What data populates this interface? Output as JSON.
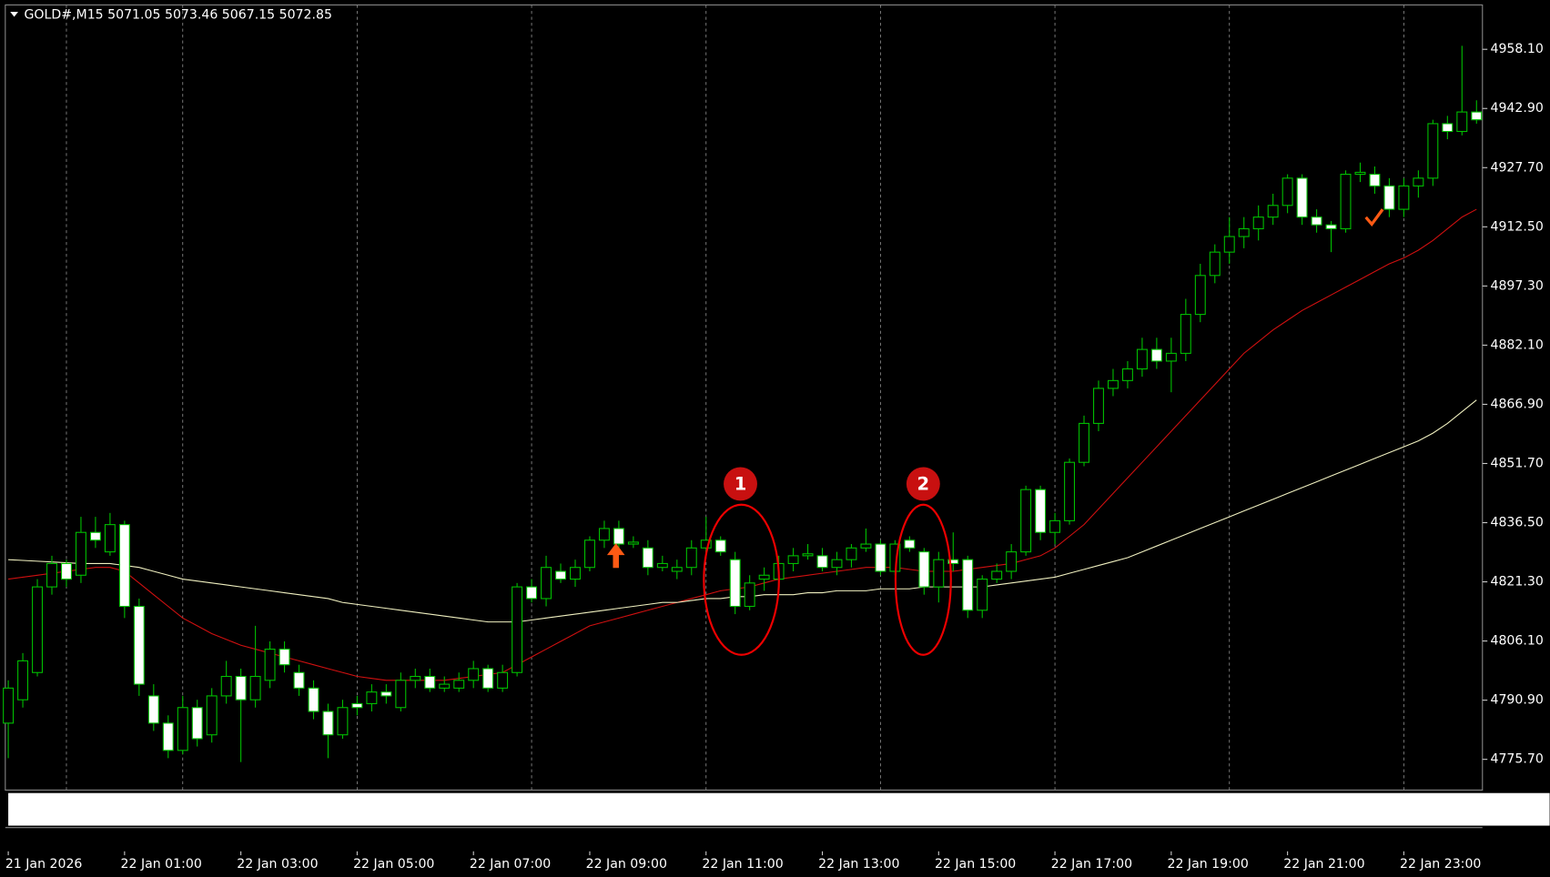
{
  "chart_data": {
    "type": "candlestick",
    "title": "GOLD#,M15  5071.05 5073.46 5067.15 5072.85",
    "categories": [
      "21 Jan 2026",
      null,
      null,
      null,
      null,
      null,
      null,
      null,
      "22 Jan 01:00",
      null,
      null,
      null,
      null,
      null,
      null,
      null,
      "22 Jan 03:00",
      null,
      null,
      null,
      null,
      null,
      null,
      null,
      "22 Jan 05:00",
      null,
      null,
      null,
      null,
      null,
      null,
      null,
      "22 Jan 07:00",
      null,
      null,
      null,
      null,
      null,
      null,
      null,
      "22 Jan 09:00",
      null,
      null,
      null,
      null,
      null,
      null,
      null,
      "22 Jan 11:00",
      null,
      null,
      null,
      null,
      null,
      null,
      null,
      "22 Jan 13:00",
      null,
      null,
      null,
      null,
      null,
      null,
      null,
      "22 Jan 15:00",
      null,
      null,
      null,
      null,
      null,
      null,
      null,
      "22 Jan 17:00",
      null,
      null,
      null,
      null,
      null,
      null,
      null,
      "22 Jan 19:00",
      null,
      null,
      null,
      null,
      null,
      null,
      null,
      "22 Jan 21:00",
      null,
      null,
      null,
      null,
      null,
      null,
      null,
      "22 Jan 23:00",
      null,
      null,
      null,
      null,
      null
    ],
    "open": [
      4785,
      4791,
      4798,
      4820,
      4826,
      4823,
      4834,
      4829,
      4836,
      4815,
      4792,
      4785,
      4778,
      4789,
      4782,
      4792,
      4797,
      4791,
      4796,
      4804,
      4798,
      4794,
      4788,
      4782,
      4790,
      4790,
      4793,
      4789,
      4796,
      4797,
      4794,
      4794,
      4796,
      4799,
      4794,
      4798,
      4820,
      4817,
      4824,
      4822,
      4825,
      4832,
      4835,
      4831,
      4830,
      4825,
      4824,
      4825,
      4830,
      4832,
      4827,
      4815,
      4822,
      4822,
      4826,
      4828,
      4828,
      4825,
      4827,
      4830,
      4831,
      4824,
      4832,
      4829,
      4820,
      4827,
      4827,
      4814,
      4822,
      4824,
      4829,
      4845,
      4834,
      4837,
      4852,
      4862,
      4871,
      4873,
      4876,
      4881,
      4878,
      4880,
      4890,
      4900,
      4906,
      4910,
      4912,
      4915,
      4918,
      4925,
      4915,
      4913,
      4912,
      4926,
      4926,
      4923,
      4917,
      4923,
      4925,
      4939,
      4937,
      4942
    ],
    "high": [
      4796,
      4803,
      4822,
      4828,
      4827,
      4838,
      4838,
      4839,
      4837,
      4817,
      4795,
      4787,
      4792,
      4791,
      4794,
      4801,
      4799,
      4810,
      4806,
      4806,
      4800,
      4796,
      4790,
      4791,
      4792,
      4795,
      4795,
      4798,
      4799,
      4799,
      4797,
      4798,
      4801,
      4800,
      4800,
      4821,
      4822,
      4828,
      4826,
      4827,
      4833,
      4837,
      4837,
      4833,
      4832,
      4828,
      4827,
      4832,
      4838,
      4833,
      4829,
      4823,
      4825,
      4828,
      4830,
      4831,
      4830,
      4829,
      4831,
      4835,
      4832,
      4832,
      4833,
      4830,
      4829,
      4834,
      4828,
      4823,
      4826,
      4831,
      4846,
      4846,
      4839,
      4853,
      4864,
      4873,
      4876,
      4878,
      4884,
      4884,
      4884,
      4894,
      4903,
      4908,
      4915,
      4915,
      4918,
      4921,
      4926,
      4926,
      4917,
      4914,
      4927,
      4929,
      4928,
      4925,
      4925,
      4927,
      4940,
      4941,
      4959,
      4945
    ],
    "low": [
      4776,
      4789,
      4797,
      4818,
      4820,
      4821,
      4830,
      4828,
      4812,
      4792,
      4783,
      4776,
      4777,
      4779,
      4780,
      4790,
      4775,
      4789,
      4794,
      4798,
      4792,
      4786,
      4776,
      4781,
      4787,
      4788,
      4790,
      4788,
      4794,
      4793,
      4793,
      4793,
      4794,
      4793,
      4793,
      4797,
      4816,
      4815,
      4821,
      4820,
      4824,
      4830,
      4829,
      4830,
      4823,
      4824,
      4822,
      4823,
      4828,
      4828,
      4813,
      4814,
      4819,
      4821,
      4824,
      4827,
      4824,
      4823,
      4825,
      4829,
      4823,
      4823,
      4829,
      4818,
      4816,
      4824,
      4812,
      4812,
      4821,
      4822,
      4828,
      4832,
      4831,
      4836,
      4851,
      4860,
      4869,
      4871,
      4874,
      4876,
      4870,
      4878,
      4888,
      4898,
      4903,
      4907,
      4909,
      4913,
      4916,
      4913,
      4911,
      4906,
      4911,
      4924,
      4921,
      4915,
      4915,
      4920,
      4923,
      4935,
      4936,
      4939
    ],
    "close": [
      4794,
      4801,
      4820,
      4826,
      4822,
      4834,
      4832,
      4836,
      4815,
      4795,
      4785,
      4778,
      4789,
      4781,
      4792,
      4797,
      4791,
      4797,
      4804,
      4800,
      4794,
      4788,
      4782,
      4789,
      4789,
      4793,
      4792,
      4796,
      4797,
      4794,
      4795,
      4796,
      4799,
      4794,
      4798,
      4820,
      4817,
      4825,
      4822,
      4825,
      4832,
      4835,
      4831,
      4831.5,
      4825,
      4826,
      4825,
      4830,
      4832,
      4829,
      4815,
      4821,
      4823,
      4826,
      4828,
      4828.5,
      4825,
      4827,
      4830,
      4831,
      4824,
      4831,
      4830,
      4820,
      4827,
      4826,
      4814,
      4822,
      4824,
      4829,
      4845,
      4834,
      4837,
      4852,
      4862,
      4871,
      4873,
      4876,
      4881,
      4878,
      4880,
      4890,
      4900,
      4906,
      4910,
      4912,
      4915,
      4918,
      4925,
      4915,
      4913,
      4912,
      4926,
      4926.5,
      4923,
      4917,
      4923,
      4925,
      4939,
      4937,
      4942,
      4940
    ],
    "up_color": "#000000",
    "down_color": "#ffffff",
    "wick_color": "#00c000",
    "series": [
      {
        "color": "#d01010",
        "values": [
          4822,
          4822.5,
          4823,
          4823.5,
          4824,
          4824.5,
          4825,
          4825,
          4824,
          4821,
          4818,
          4815,
          4812,
          4810,
          4808,
          4806.5,
          4805,
          4804,
          4803,
          4802,
          4801,
          4800,
          4799,
          4798,
          4797,
          4796.5,
          4796,
          4796,
          4796,
          4796,
          4796,
          4796.5,
          4797,
          4797.5,
          4798,
          4800,
          4802,
          4804,
          4806,
          4808,
          4810,
          4811,
          4812,
          4813,
          4814,
          4815,
          4816,
          4817,
          4818,
          4819,
          4819.5,
          4820,
          4821,
          4822,
          4822.5,
          4823,
          4823.5,
          4824,
          4824.5,
          4825,
          4825,
          4825,
          4824.5,
          4824,
          4824,
          4824,
          4824.5,
          4825,
          4825.5,
          4826,
          4827,
          4828,
          4830,
          4833,
          4836,
          4840,
          4844,
          4848,
          4852,
          4856,
          4860,
          4864,
          4868,
          4872,
          4876,
          4880,
          4883,
          4886,
          4888.5,
          4891,
          4893,
          4895,
          4897,
          4899,
          4901,
          4903,
          4904.5,
          4906.5,
          4909,
          4912,
          4915,
          4917
        ]
      },
      {
        "color": "#f0f0c0",
        "values": [
          4827,
          4826.8,
          4826.6,
          4826.4,
          4826.2,
          4826,
          4826,
          4826,
          4825.5,
          4825,
          4824,
          4823,
          4822,
          4821.5,
          4821,
          4820.5,
          4820,
          4819.5,
          4819,
          4818.5,
          4818,
          4817.5,
          4817,
          4816,
          4815.5,
          4815,
          4814.5,
          4814,
          4813.5,
          4813,
          4812.5,
          4812,
          4811.5,
          4811,
          4811,
          4811,
          4811.5,
          4812,
          4812.5,
          4813,
          4813.5,
          4814,
          4814.5,
          4815,
          4815.5,
          4816,
          4816,
          4816.5,
          4817,
          4817,
          4817.5,
          4817.5,
          4818,
          4818,
          4818,
          4818.5,
          4818.5,
          4819,
          4819,
          4819,
          4819.5,
          4819.5,
          4819.5,
          4820,
          4820,
          4820,
          4820,
          4820,
          4820.5,
          4821,
          4821.5,
          4822,
          4822.5,
          4823.5,
          4824.5,
          4825.5,
          4826.5,
          4827.5,
          4829,
          4830.5,
          4832,
          4833.5,
          4835,
          4836.5,
          4838,
          4839.5,
          4841,
          4842.5,
          4844,
          4845.5,
          4847,
          4848.5,
          4850,
          4851.5,
          4853,
          4854.5,
          4856,
          4857.5,
          4859.5,
          4862,
          4865,
          4868
        ]
      }
    ],
    "ylim": [
      4767.8,
      4969.5
    ],
    "yticks": [
      {
        "value": 4775.7,
        "label": "4775.70"
      },
      {
        "value": 4790.9,
        "label": "4790.90"
      },
      {
        "value": 4806.1,
        "label": "4806.10"
      },
      {
        "value": 4821.3,
        "label": "4821.30"
      },
      {
        "value": 4836.5,
        "label": "4836.50"
      },
      {
        "value": 4851.7,
        "label": "4851.70"
      },
      {
        "value": 4866.9,
        "label": "4866.90"
      },
      {
        "value": 4882.1,
        "label": "4882.10"
      },
      {
        "value": 4897.3,
        "label": "4897.30"
      },
      {
        "value": 4912.5,
        "label": "4912.50"
      },
      {
        "value": 4927.7,
        "label": "4927.70"
      },
      {
        "value": 4942.9,
        "label": "4942.90"
      },
      {
        "value": 4958.1,
        "label": "4958.10"
      }
    ],
    "annotations": [
      "1",
      "2"
    ]
  }
}
